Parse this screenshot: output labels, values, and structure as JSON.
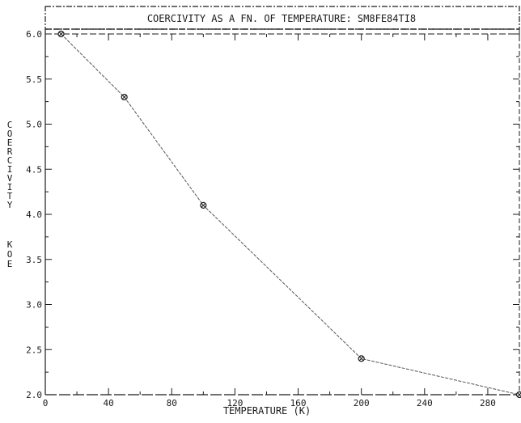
{
  "chart_data": {
    "type": "line",
    "title": "COERCIVITY AS A FN. OF TEMPERATURE: SM8FE84TI8",
    "xlabel": "TEMPERATURE (K)",
    "ylabel_main": "COERCIVITY",
    "ylabel_unit": "KOE",
    "xlim": [
      0,
      300
    ],
    "ylim": [
      2.0,
      6.0
    ],
    "x_ticks": [
      0,
      40,
      80,
      120,
      160,
      200,
      240,
      280
    ],
    "x_tick_labels": [
      "0",
      "40",
      "80",
      "120",
      "160",
      "200",
      "240",
      "280"
    ],
    "y_ticks": [
      2.0,
      2.5,
      3.0,
      3.5,
      4.0,
      4.5,
      5.0,
      5.5,
      6.0
    ],
    "y_tick_labels": [
      "2.0",
      "2.5",
      "3.0",
      "3.5",
      "4.0",
      "4.5",
      "5.0",
      "5.5",
      "6.0"
    ],
    "grid": false,
    "series": [
      {
        "x": [
          10,
          50,
          100,
          200,
          300
        ],
        "y": [
          6.0,
          5.3,
          4.1,
          2.4,
          2.0
        ]
      }
    ],
    "colors": {
      "ink": "#1a1a1a",
      "line": "#555555"
    }
  }
}
